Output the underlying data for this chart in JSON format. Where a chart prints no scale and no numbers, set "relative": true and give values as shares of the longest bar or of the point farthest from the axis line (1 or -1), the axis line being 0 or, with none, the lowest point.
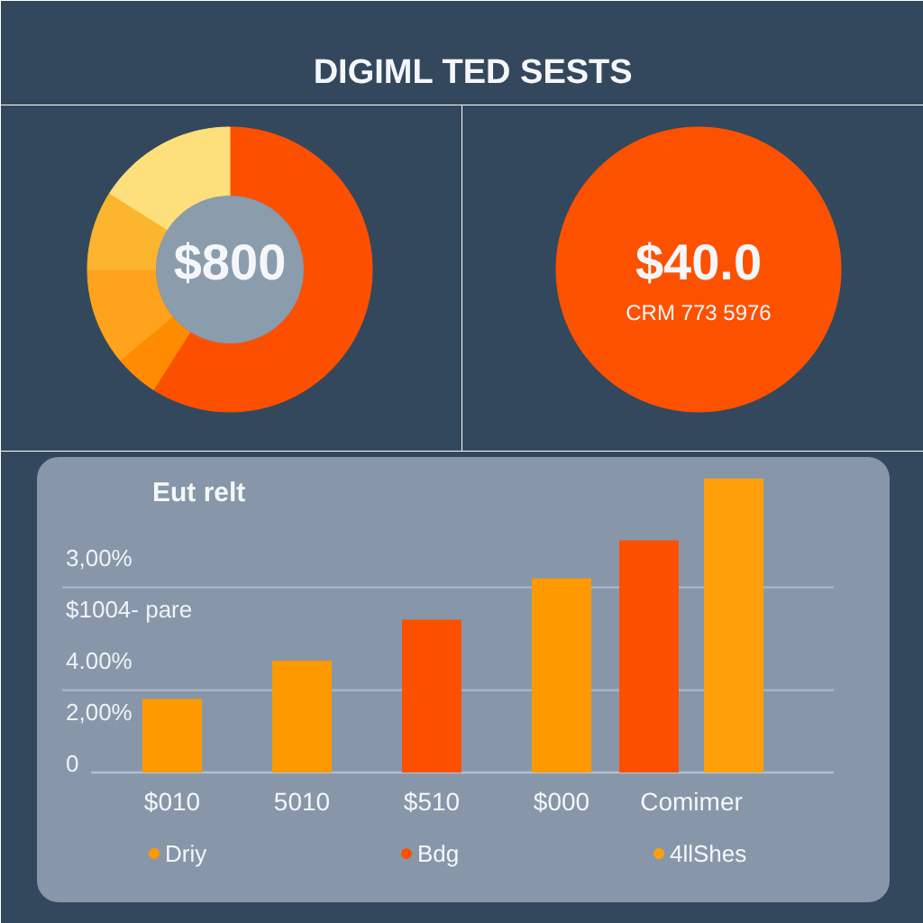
{
  "chart_data": [
    {
      "type": "donut",
      "title": "DIGIML TED SESTS",
      "categories": [
        null,
        null,
        null,
        null,
        null
      ],
      "values": [
        59,
        5,
        11,
        9,
        16
      ],
      "colors": [
        "#fc5000",
        "#ff8c00",
        "#ffa31c",
        "#fbb52e",
        "#fde07c"
      ],
      "annotations": [
        "$800"
      ]
    },
    {
      "type": "pie",
      "categories": [
        null
      ],
      "values": [
        100
      ],
      "colors": [
        "#fc5200"
      ],
      "annotations": [
        "$40.0",
        "CRM 773 5976"
      ]
    },
    {
      "type": "bar",
      "title": "Eut relt",
      "relative": true,
      "categories": [
        "$010",
        "5010",
        "$510",
        "$000",
        "Comimer"
      ],
      "series": [
        {
          "name": "Driy",
          "color": "#ff9900",
          "values": [
            0.25,
            0.38,
            null,
            0.66,
            null
          ]
        },
        {
          "name": "Bdg",
          "color": "#fc5000",
          "values": [
            null,
            null,
            0.52,
            null,
            0.79
          ]
        },
        {
          "name": "4llShes",
          "color": "#ffa00a",
          "values": [
            null,
            null,
            null,
            null,
            1.0
          ]
        }
      ],
      "legend": "bottom",
      "ref_lines": [
        {
          "axis": "y",
          "value": 0.63,
          "color": "#a9b6c4"
        },
        {
          "axis": "y",
          "value": 0.28,
          "color": "#a9b6c4"
        }
      ],
      "annotations": [
        "3,00%",
        "$1004- pare",
        "4.00%",
        "2,00%",
        "0"
      ]
    }
  ]
}
